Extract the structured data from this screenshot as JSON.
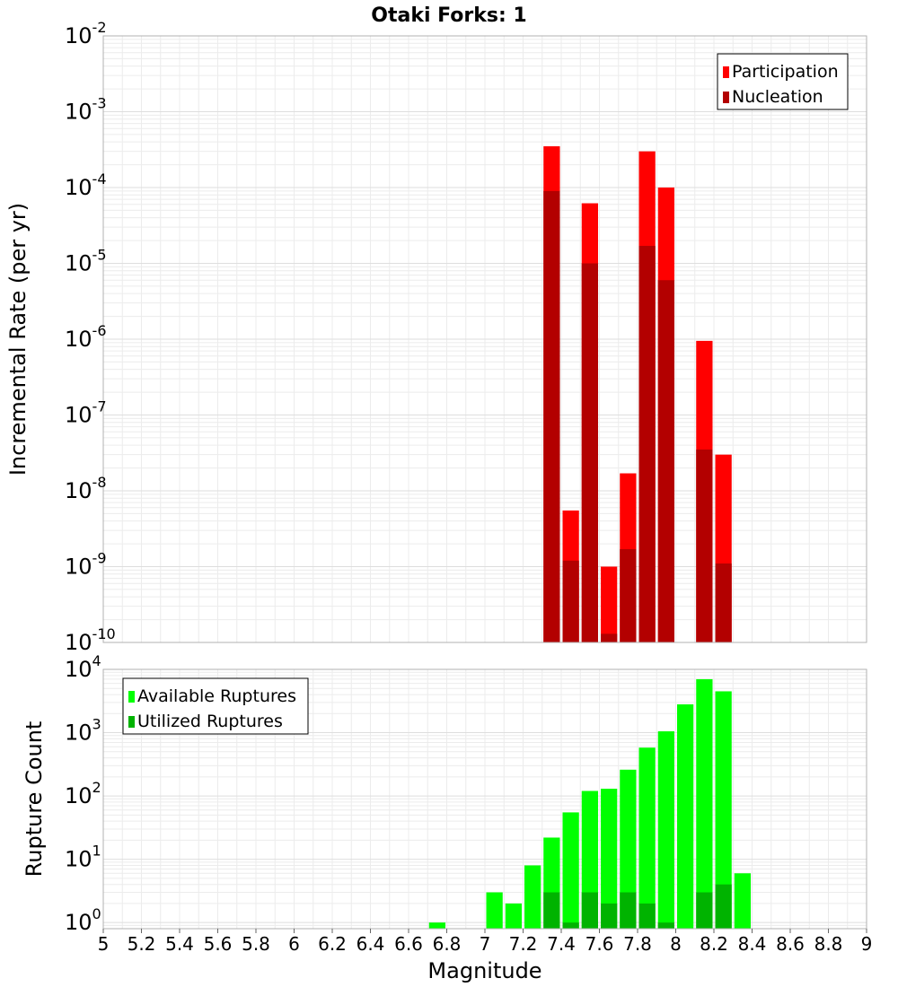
{
  "chart_data": [
    {
      "type": "bar",
      "title": "Otaki Forks: 1",
      "xlabel": "",
      "ylabel": "Incremental Rate (per yr)",
      "y_scale": "log",
      "ylim": [
        1e-10,
        0.01
      ],
      "xlim": [
        5,
        9
      ],
      "grid": true,
      "legend_position": "top-right",
      "x": [
        7.35,
        7.45,
        7.55,
        7.65,
        7.75,
        7.85,
        7.95,
        8.15,
        8.25
      ],
      "series": [
        {
          "name": "Participation",
          "color": "#ff0000",
          "values": [
            0.00035,
            5.5e-09,
            6.2e-05,
            1e-09,
            1.7e-08,
            0.0003,
            0.0001,
            9.5e-07,
            3e-08
          ]
        },
        {
          "name": "Nucleation",
          "color": "#b30000",
          "values": [
            9e-05,
            1.2e-09,
            1e-05,
            1.3e-10,
            1.7e-09,
            1.7e-05,
            6e-06,
            3.5e-08,
            1.1e-09
          ]
        }
      ],
      "y_ticks": [
        {
          "base": "10",
          "exp": "-10"
        },
        {
          "base": "10",
          "exp": "-9"
        },
        {
          "base": "10",
          "exp": "-8"
        },
        {
          "base": "10",
          "exp": "-7"
        },
        {
          "base": "10",
          "exp": "-6"
        },
        {
          "base": "10",
          "exp": "-5"
        },
        {
          "base": "10",
          "exp": "-4"
        },
        {
          "base": "10",
          "exp": "-3"
        },
        {
          "base": "10",
          "exp": "-2"
        }
      ]
    },
    {
      "type": "bar",
      "title": "",
      "xlabel": "Magnitude",
      "ylabel": "Rupture Count",
      "y_scale": "log",
      "ylim": [
        0.8,
        10000
      ],
      "xlim": [
        5,
        9
      ],
      "grid": true,
      "legend_position": "top-left",
      "x": [
        6.75,
        7.05,
        7.15,
        7.25,
        7.35,
        7.45,
        7.55,
        7.65,
        7.75,
        7.85,
        7.95,
        8.05,
        8.15,
        8.25,
        8.35
      ],
      "series": [
        {
          "name": "Available Ruptures",
          "color": "#00ff00",
          "values": [
            1,
            3,
            2,
            8,
            22,
            55,
            120,
            130,
            260,
            580,
            1050,
            2800,
            7000,
            4500,
            6
          ]
        },
        {
          "name": "Utilized Ruptures",
          "color": "#00b300",
          "values": [
            0,
            0,
            0,
            0,
            3,
            1,
            3,
            2,
            3,
            2,
            1,
            0,
            3,
            4,
            0
          ]
        }
      ],
      "x_ticks": [
        "5",
        "5.2",
        "5.4",
        "5.6",
        "5.8",
        "6",
        "6.2",
        "6.4",
        "6.6",
        "6.8",
        "7",
        "7.2",
        "7.4",
        "7.6",
        "7.8",
        "8",
        "8.2",
        "8.4",
        "8.6",
        "8.8",
        "9"
      ],
      "y_ticks": [
        {
          "base": "10",
          "exp": "0"
        },
        {
          "base": "10",
          "exp": "1"
        },
        {
          "base": "10",
          "exp": "2"
        },
        {
          "base": "10",
          "exp": "3"
        },
        {
          "base": "10",
          "exp": "4"
        }
      ]
    }
  ]
}
